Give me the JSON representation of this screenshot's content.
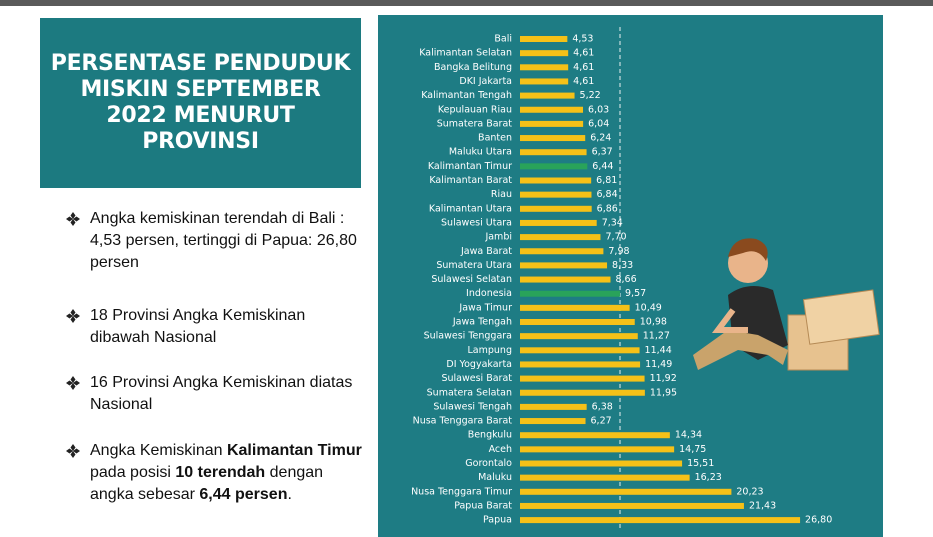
{
  "title": "PERSENTASE PENDUDUK MISKIN SEPTEMBER 2022 MENURUT PROVINSI",
  "bullets": [
    {
      "runs": [
        {
          "text": "Angka kemiskinan terendah di Bali : 4,53 persen, tertinggi di Papua: 26,80 persen",
          "bold": false
        }
      ]
    },
    {
      "runs": [
        {
          "text": "18 Provinsi Angka Kemiskinan dibawah Nasional",
          "bold": false
        }
      ]
    },
    {
      "runs": [
        {
          "text": "16 Provinsi Angka Kemiskinan diatas Nasional",
          "bold": false
        }
      ]
    },
    {
      "runs": [
        {
          "text": "Angka Kemiskinan ",
          "bold": false
        },
        {
          "text": "Kalimantan Timur",
          "bold": true
        },
        {
          "text": " pada posisi ",
          "bold": false
        },
        {
          "text": "10 terendah",
          "bold": true
        },
        {
          "text": " dengan angka sebesar ",
          "bold": false
        },
        {
          "text": "6,44 persen",
          "bold": true
        },
        {
          "text": ".",
          "bold": false
        }
      ]
    }
  ],
  "chart_data": {
    "type": "hbar",
    "categories": [
      "Bali",
      "Kalimantan Selatan",
      "Bangka Belitung",
      "DKI Jakarta",
      "Kalimantan Tengah",
      "Kepulauan Riau",
      "Sumatera Barat",
      "Banten",
      "Maluku Utara",
      "Kalimantan Timur",
      "Kalimantan Barat",
      "Riau",
      "Kalimantan Utara",
      "Sulawesi Utara",
      "Jambi",
      "Jawa Barat",
      "Sumatera Utara",
      "Sulawesi Selatan",
      "Indonesia",
      "Jawa Timur",
      "Jawa Tengah",
      "Sulawesi Tenggara",
      "Lampung",
      "DI Yogyakarta",
      "Sulawesi Barat",
      "Sumatera Selatan",
      "Sulawesi Tengah",
      "Nusa Tenggara Barat",
      "Bengkulu",
      "Aceh",
      "Gorontalo",
      "Maluku",
      "Nusa Tenggara Timur",
      "Papua Barat",
      "Papua"
    ],
    "values": [
      4.53,
      4.61,
      4.61,
      4.61,
      5.22,
      6.03,
      6.04,
      6.24,
      6.37,
      6.44,
      6.81,
      6.84,
      6.86,
      7.34,
      7.7,
      7.98,
      8.33,
      8.66,
      9.57,
      10.49,
      10.98,
      11.27,
      11.44,
      11.49,
      11.92,
      11.95,
      6.38,
      6.27,
      14.34,
      14.75,
      15.51,
      16.23,
      20.23,
      21.43,
      26.8
    ],
    "value_labels": [
      "4,53",
      "4,61",
      "4,61",
      "4,61",
      "5,22",
      "6,03",
      "6,04",
      "6,24",
      "6,37",
      "6,44",
      "6,81",
      "6,84",
      "6,86",
      "7,34",
      "7,70",
      "7,98",
      "8,33",
      "8,66",
      "9,57",
      "10,49",
      "10,98",
      "11,27",
      "11,44",
      "11,49",
      "11,92",
      "11,95",
      "6,38",
      "6,27",
      "14,34",
      "14,75",
      "15,51",
      "16,23",
      "20,23",
      "21,43",
      "26,80"
    ],
    "colors": [
      "#f5c118",
      "#f5c118",
      "#f5c118",
      "#f5c118",
      "#f5c118",
      "#f5c118",
      "#f5c118",
      "#f5c118",
      "#f5c118",
      "#29a35a",
      "#f5c118",
      "#f5c118",
      "#f5c118",
      "#f5c118",
      "#f5c118",
      "#f5c118",
      "#f5c118",
      "#f5c118",
      "#29a35a",
      "#f5c118",
      "#f5c118",
      "#f5c118",
      "#f5c118",
      "#f5c118",
      "#f5c118",
      "#f5c118",
      "#f5c118",
      "#f5c118",
      "#f5c118",
      "#f5c118",
      "#f5c118",
      "#f5c118",
      "#f5c118",
      "#f5c118",
      "#f5c118"
    ],
    "reference_category": 18,
    "background": "#1e7c84"
  }
}
